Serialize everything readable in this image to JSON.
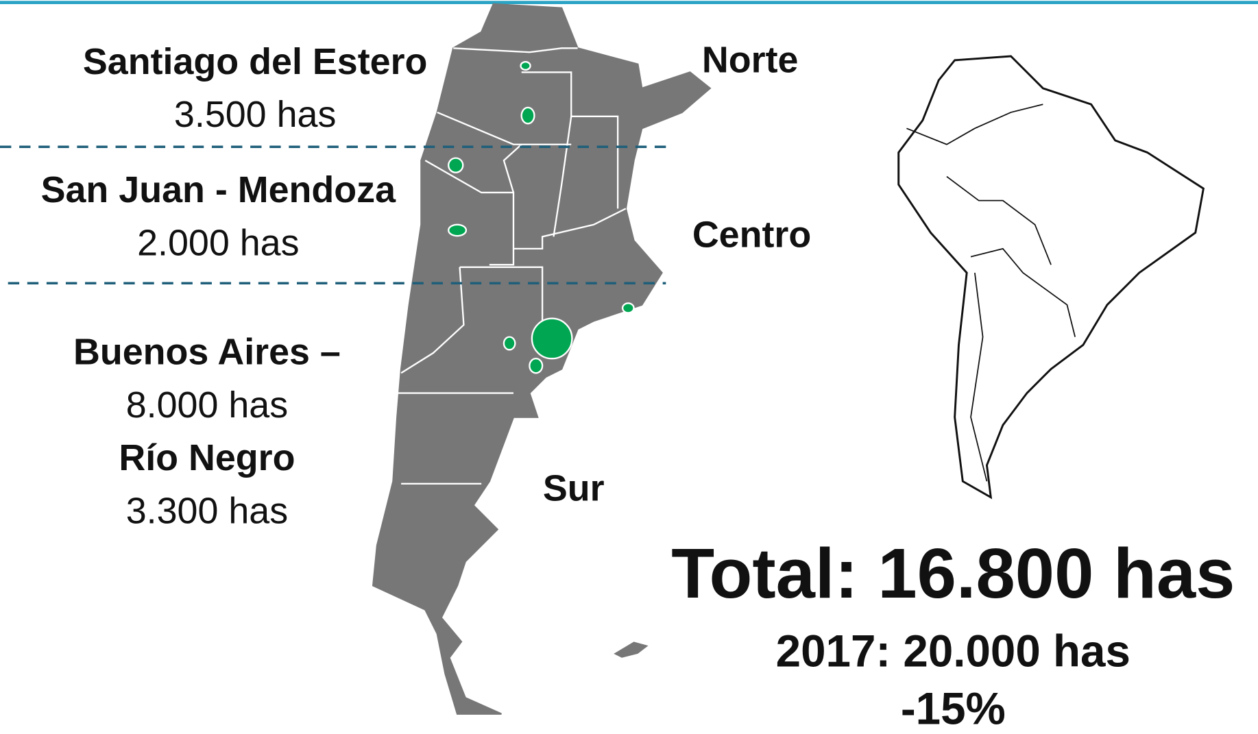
{
  "regions": [
    {
      "name": "Santiago del Estero",
      "area": "3.500 has"
    },
    {
      "name": "San Juan - Mendoza",
      "area": "2.000 has"
    },
    {
      "name": "Buenos Aires –",
      "area": "8.000 has"
    },
    {
      "name": "Río Negro",
      "area": "3.300 has"
    }
  ],
  "zones": [
    "Norte",
    "Centro",
    "Sur"
  ],
  "total": "Total: 16.800 has",
  "previous": "2017: 20.000 has",
  "change": "-15%"
}
